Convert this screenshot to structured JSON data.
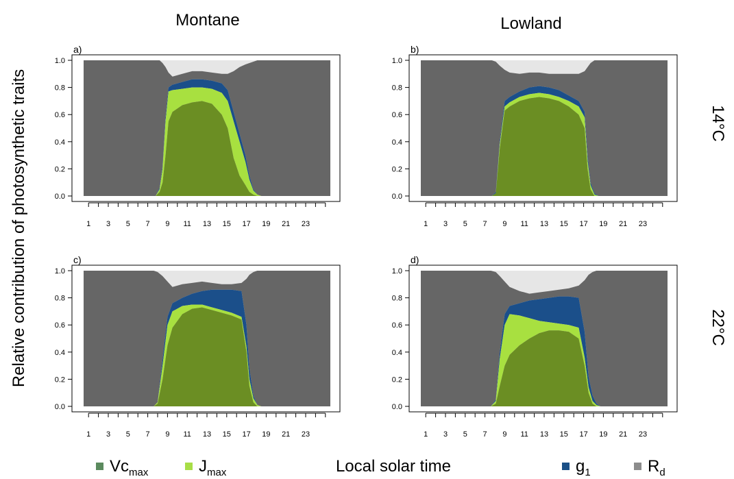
{
  "figure": {
    "ylabel": "Relative contribution of photosynthetic traits",
    "xlabel": "Local solar time",
    "columns": [
      "Montane",
      "Lowland"
    ],
    "rows": [
      "14°C",
      "22°C"
    ]
  },
  "legend": {
    "items": [
      {
        "base": "Vc",
        "sub": "max",
        "color": "#5b8a5e"
      },
      {
        "base": "J",
        "sub": "max",
        "color": "#a8de47"
      },
      {
        "base": "g",
        "sub": "1",
        "color": "#1a4f86"
      },
      {
        "base": "R",
        "sub": "d",
        "color": "#8c8c8c"
      }
    ]
  },
  "colors": {
    "vcmax": "#6b8e23",
    "jmax": "#a8e040",
    "g1": "#1b4f8a",
    "rd": "#666666",
    "rest": "#e6e6e6"
  },
  "chart_data": {
    "type": "area",
    "stacking": "cumulative boundaries (Vcmax, +Jmax, +g1, remainder up to 1 minus light-grey gap)",
    "x_ticks": [
      1,
      3,
      5,
      7,
      9,
      11,
      13,
      15,
      17,
      19,
      21,
      23
    ],
    "xlim": [
      0,
      25
    ],
    "y_ticks": [
      "0.0",
      "0.2",
      "0.4",
      "0.6",
      "0.8",
      "1.0"
    ],
    "ylim": [
      0,
      1
    ],
    "panels": [
      {
        "label": "a)",
        "column": "Montane",
        "row": "14°C",
        "x": [
          0,
          7.3,
          7.7,
          8.0,
          8.3,
          8.6,
          9.0,
          10,
          11,
          12,
          13,
          14,
          14.6,
          15.2,
          15.8,
          16.4,
          16.8,
          17.2,
          17.6,
          18.0,
          25
        ],
        "vc": [
          0,
          0,
          0.03,
          0.1,
          0.3,
          0.55,
          0.62,
          0.67,
          0.69,
          0.7,
          0.68,
          0.6,
          0.5,
          0.28,
          0.15,
          0.08,
          0.03,
          0.01,
          0,
          0,
          0
        ],
        "j": [
          0,
          0,
          0.05,
          0.2,
          0.55,
          0.77,
          0.78,
          0.79,
          0.8,
          0.8,
          0.79,
          0.76,
          0.7,
          0.55,
          0.4,
          0.25,
          0.12,
          0.04,
          0.01,
          0,
          0
        ],
        "g": [
          0,
          0,
          0.06,
          0.22,
          0.58,
          0.8,
          0.82,
          0.84,
          0.86,
          0.86,
          0.85,
          0.83,
          0.78,
          0.62,
          0.46,
          0.3,
          0.15,
          0.05,
          0.01,
          0,
          0
        ],
        "top": [
          1,
          1,
          1.0,
          0.98,
          0.95,
          0.91,
          0.88,
          0.9,
          0.92,
          0.92,
          0.91,
          0.9,
          0.9,
          0.92,
          0.95,
          0.97,
          0.98,
          0.99,
          1,
          1,
          1
        ]
      },
      {
        "label": "b)",
        "column": "Lowland",
        "row": "14°C",
        "x": [
          0,
          7.2,
          7.6,
          8.0,
          8.5,
          9,
          10,
          11,
          12,
          13,
          14,
          15,
          16,
          16.6,
          16.9,
          17.2,
          17.6,
          18.0,
          25
        ],
        "vc": [
          0,
          0,
          0.02,
          0.35,
          0.63,
          0.66,
          0.7,
          0.72,
          0.73,
          0.72,
          0.7,
          0.66,
          0.6,
          0.5,
          0.2,
          0.05,
          0,
          0,
          0
        ],
        "j": [
          0,
          0,
          0.02,
          0.38,
          0.66,
          0.69,
          0.73,
          0.75,
          0.76,
          0.75,
          0.73,
          0.7,
          0.66,
          0.58,
          0.26,
          0.08,
          0.01,
          0,
          0
        ],
        "g": [
          0,
          0,
          0.03,
          0.4,
          0.7,
          0.73,
          0.77,
          0.8,
          0.81,
          0.8,
          0.78,
          0.74,
          0.7,
          0.62,
          0.3,
          0.1,
          0.02,
          0,
          0
        ],
        "top": [
          1,
          1,
          0.99,
          0.96,
          0.93,
          0.91,
          0.9,
          0.91,
          0.91,
          0.9,
          0.9,
          0.9,
          0.9,
          0.92,
          0.95,
          0.98,
          1,
          1,
          1
        ]
      },
      {
        "label": "c)",
        "column": "Montane",
        "row": "22°C",
        "x": [
          0,
          7.1,
          7.5,
          8.0,
          8.5,
          9,
          10,
          11,
          12,
          13,
          14,
          15,
          16,
          16.5,
          16.8,
          17.2,
          17.6,
          18.0,
          25
        ],
        "vc": [
          0,
          0,
          0.02,
          0.2,
          0.45,
          0.58,
          0.68,
          0.72,
          0.73,
          0.71,
          0.69,
          0.67,
          0.64,
          0.4,
          0.15,
          0.03,
          0,
          0,
          0
        ],
        "j": [
          0,
          0,
          0.03,
          0.3,
          0.6,
          0.7,
          0.74,
          0.75,
          0.75,
          0.73,
          0.71,
          0.69,
          0.66,
          0.44,
          0.2,
          0.06,
          0.01,
          0,
          0
        ],
        "g": [
          0,
          0,
          0.03,
          0.35,
          0.66,
          0.76,
          0.8,
          0.83,
          0.85,
          0.86,
          0.86,
          0.86,
          0.85,
          0.6,
          0.28,
          0.08,
          0.01,
          0,
          0
        ],
        "top": [
          1,
          1,
          0.99,
          0.96,
          0.92,
          0.88,
          0.9,
          0.91,
          0.92,
          0.91,
          0.9,
          0.9,
          0.91,
          0.94,
          0.97,
          0.99,
          1,
          1,
          1
        ]
      },
      {
        "label": "d)",
        "column": "Lowland",
        "row": "22°C",
        "x": [
          0,
          7.1,
          7.6,
          8.0,
          8.5,
          9,
          10,
          11,
          12,
          13,
          14,
          15,
          16,
          16.6,
          17.0,
          17.4,
          17.8,
          18.2,
          25
        ],
        "vc": [
          0,
          0,
          0.02,
          0.15,
          0.3,
          0.38,
          0.45,
          0.5,
          0.54,
          0.56,
          0.56,
          0.55,
          0.5,
          0.3,
          0.1,
          0.02,
          0,
          0,
          0
        ],
        "j": [
          0,
          0,
          0.04,
          0.35,
          0.6,
          0.68,
          0.67,
          0.65,
          0.63,
          0.62,
          0.61,
          0.6,
          0.58,
          0.36,
          0.14,
          0.04,
          0.01,
          0,
          0
        ],
        "g": [
          0,
          0,
          0.05,
          0.4,
          0.68,
          0.74,
          0.76,
          0.78,
          0.79,
          0.8,
          0.81,
          0.81,
          0.8,
          0.55,
          0.22,
          0.08,
          0.02,
          0,
          0
        ],
        "top": [
          1,
          1,
          0.99,
          0.96,
          0.92,
          0.88,
          0.85,
          0.83,
          0.84,
          0.85,
          0.86,
          0.87,
          0.89,
          0.93,
          0.97,
          0.99,
          1,
          1,
          1
        ]
      }
    ]
  }
}
